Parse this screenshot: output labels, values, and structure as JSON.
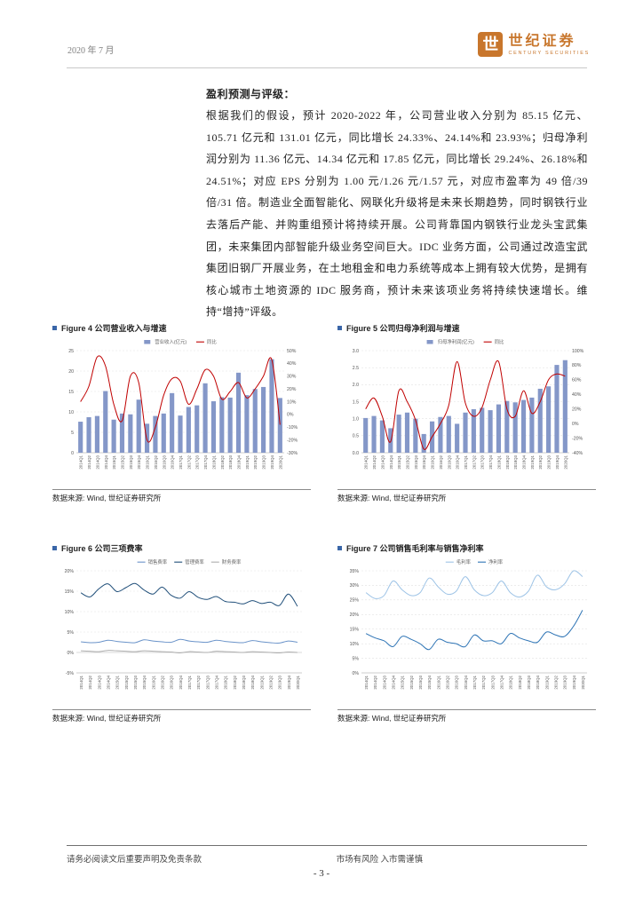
{
  "page": {
    "header": {
      "date": "2020 年 7 月",
      "brand": {
        "name": "世纪证券",
        "subtitle": "CENTURY SECURITIES",
        "icon_glyph": "世",
        "color": "#C8762C"
      }
    },
    "section": {
      "heading": "盈利预测与评级：",
      "paragraph": "根据我们的假设，预计 2020-2022 年，公司营业收入分别为 85.15 亿元、105.71 亿元和 131.01 亿元，同比增长 24.33%、24.14%和 23.93%；归母净利润分别为 11.36 亿元、14.34 亿元和 17.85 亿元，同比增长 29.24%、26.18%和 24.51%；对应 EPS 分别为 1.00 元/1.26 元/1.57 元，对应市盈率为 49 倍/39 倍/31 倍。制造业全面智能化、网联化升级将是未来长期趋势，同时钢铁行业去落后产能、并购重组预计将持续开展。公司背靠国内钢铁行业龙头宝武集团，未来集团内部智能升级业务空间巨大。IDC 业务方面，公司通过改造宝武集团旧钢厂开展业务，在土地租金和电力系统等成本上拥有较大优势，是拥有核心城市土地资源的 IDC 服务商，预计未来该项业务将持续快速增长。维持“增持”评级。"
    },
    "footer": {
      "left": "请务必阅读文后重要声明及免责条款",
      "right": "市场有风险 入市需谨慎",
      "page_number": "- 3 -"
    }
  },
  "chart_data": [
    {
      "figure_label": "Figure 4 公司营业收入与增速",
      "type": "bar",
      "source": "数据来源: Wind, 世纪证券研究所",
      "categories": [
        "2014Q1",
        "2014Q2",
        "2014Q3",
        "2014Q4",
        "2015Q1",
        "2015Q2",
        "2015Q3",
        "2015Q4",
        "2016Q1",
        "2016Q2",
        "2016Q3",
        "2016Q4",
        "2017Q1",
        "2017Q2",
        "2017Q3",
        "2017Q4",
        "2018Q1",
        "2018Q2",
        "2018Q3",
        "2018Q4",
        "2019Q1",
        "2019Q2",
        "2019Q3",
        "2019Q4",
        "2020Q1"
      ],
      "series": [
        {
          "name": "营业收入(亿元)",
          "type": "bar",
          "axis": "left",
          "color": "#8497C8",
          "values": [
            7.6,
            8.7,
            9.0,
            15.1,
            8.1,
            9.6,
            9.4,
            13.0,
            7.1,
            9.0,
            9.6,
            14.6,
            9.1,
            11.2,
            11.6,
            17.0,
            12.6,
            13.6,
            13.5,
            19.6,
            14.1,
            15.6,
            16.1,
            22.9,
            13.4
          ]
        },
        {
          "name": "同比",
          "type": "line",
          "axis": "right",
          "color": "#C00000",
          "values": [
            10,
            22,
            45,
            38,
            8,
            -5,
            30,
            25,
            -20,
            -10,
            15,
            28,
            26,
            8,
            20,
            35,
            30,
            12,
            18,
            25,
            13,
            20,
            30,
            43,
            -8
          ]
        }
      ],
      "left_axis": {
        "min": 0,
        "max": 25,
        "step": 5,
        "format": "number"
      },
      "right_axis": {
        "min": -30,
        "max": 50,
        "step": 10,
        "format": "percent"
      }
    },
    {
      "figure_label": "Figure 5 公司归母净利润与增速",
      "type": "bar",
      "source": "数据来源: Wind, 世纪证券研究所",
      "categories": [
        "2014Q1",
        "2014Q2",
        "2014Q3",
        "2014Q4",
        "2015Q1",
        "2015Q2",
        "2015Q3",
        "2015Q4",
        "2016Q1",
        "2016Q2",
        "2016Q3",
        "2016Q4",
        "2017Q1",
        "2017Q2",
        "2017Q3",
        "2017Q4",
        "2018Q1",
        "2018Q2",
        "2018Q3",
        "2018Q4",
        "2019Q1",
        "2019Q2",
        "2019Q3",
        "2019Q4",
        "2020Q1"
      ],
      "series": [
        {
          "name": "归母净利润(亿元)",
          "type": "bar",
          "axis": "left",
          "color": "#8497C8",
          "values": [
            1.02,
            1.08,
            0.95,
            0.72,
            1.12,
            1.18,
            1.0,
            0.55,
            0.92,
            1.05,
            1.08,
            0.85,
            1.18,
            1.28,
            1.32,
            1.25,
            1.42,
            1.52,
            1.48,
            1.55,
            1.62,
            1.88,
            1.95,
            2.58,
            2.72
          ]
        },
        {
          "name": "同比",
          "type": "line",
          "axis": "right",
          "color": "#C00000",
          "values": [
            20,
            35,
            10,
            -25,
            45,
            30,
            5,
            -35,
            -18,
            0,
            25,
            85,
            28,
            10,
            22,
            60,
            85,
            20,
            10,
            45,
            14,
            30,
            60,
            68,
            65
          ]
        }
      ],
      "left_axis": {
        "min": 0,
        "max": 3,
        "step": 0.5,
        "format": "decimal1"
      },
      "right_axis": {
        "min": -40,
        "max": 100,
        "step": 20,
        "format": "percent"
      }
    },
    {
      "figure_label": "Figure 6 公司三项费率",
      "type": "line",
      "source": "数据来源: Wind, 世纪证券研究所",
      "categories": [
        "2014Q1",
        "2014Q2",
        "2014Q3",
        "2014Q4",
        "2015Q1",
        "2015Q2",
        "2015Q3",
        "2015Q4",
        "2016Q1",
        "2016Q2",
        "2016Q3",
        "2016Q4",
        "2017Q1",
        "2017Q2",
        "2017Q3",
        "2017Q4",
        "2018Q1",
        "2018Q2",
        "2018Q3",
        "2018Q4",
        "2019Q1",
        "2019Q2",
        "2019Q3",
        "2019Q4",
        "2020Q1"
      ],
      "series": [
        {
          "name": "销售费率",
          "type": "line",
          "axis": "left",
          "color": "#6A93C9",
          "values": [
            2.6,
            2.4,
            2.5,
            3.0,
            2.7,
            2.5,
            2.4,
            3.1,
            2.8,
            2.6,
            2.5,
            3.2,
            2.8,
            2.6,
            2.5,
            3.0,
            2.7,
            2.5,
            2.4,
            2.9,
            2.6,
            2.4,
            2.3,
            2.8,
            2.5
          ]
        },
        {
          "name": "管理费率",
          "type": "line",
          "axis": "left",
          "color": "#1F4E79",
          "values": [
            14.6,
            13.6,
            15.6,
            16.8,
            14.9,
            15.9,
            16.9,
            15.3,
            14.3,
            16.0,
            14.0,
            13.3,
            14.9,
            13.5,
            13.0,
            13.7,
            12.5,
            12.3,
            11.9,
            12.7,
            12.0,
            12.3,
            11.5,
            14.3,
            11.3
          ]
        },
        {
          "name": "财务费率",
          "type": "line",
          "axis": "left",
          "color": "#ADADAD",
          "values": [
            0.4,
            0.3,
            0.2,
            0.5,
            0.4,
            0.3,
            0.2,
            0.4,
            0.3,
            0.2,
            0.1,
            -0.1,
            0.2,
            0.1,
            0.0,
            0.3,
            0.2,
            0.1,
            0.0,
            0.2,
            0.1,
            0.0,
            -0.1,
            0.1,
            0.0
          ]
        }
      ],
      "left_axis": {
        "min": -5,
        "max": 20,
        "step": 5,
        "format": "percent"
      }
    },
    {
      "figure_label": "Figure 7 公司销售毛利率与销售净利率",
      "type": "line",
      "source": "数据来源: Wind, 世纪证券研究所",
      "categories": [
        "2014Q1",
        "2014Q2",
        "2014Q3",
        "2014Q4",
        "2015Q1",
        "2015Q2",
        "2015Q3",
        "2015Q4",
        "2016Q1",
        "2016Q2",
        "2016Q3",
        "2016Q4",
        "2017Q1",
        "2017Q2",
        "2017Q3",
        "2017Q4",
        "2018Q1",
        "2018Q2",
        "2018Q3",
        "2018Q4",
        "2019Q1",
        "2019Q2",
        "2019Q3",
        "2019Q4",
        "2020Q1"
      ],
      "series": [
        {
          "name": "毛利率",
          "type": "line",
          "axis": "left",
          "color": "#9DC3E6",
          "values": [
            27.5,
            25.5,
            26.5,
            31.5,
            28.5,
            26.5,
            27.5,
            32.5,
            29.5,
            27.0,
            28.0,
            33.0,
            28.5,
            26.5,
            27.5,
            31.5,
            27.5,
            26.0,
            28.0,
            33.5,
            29.5,
            28.5,
            30.5,
            35.0,
            33.0
          ]
        },
        {
          "name": "净利率",
          "type": "line",
          "axis": "left",
          "color": "#2E74B5",
          "values": [
            13.5,
            12.0,
            11.0,
            9.0,
            12.5,
            11.5,
            10.0,
            8.0,
            11.5,
            10.5,
            10.0,
            9.0,
            13.0,
            11.0,
            11.0,
            10.0,
            13.5,
            12.0,
            11.0,
            10.5,
            14.0,
            13.0,
            12.5,
            16.0,
            21.5
          ]
        }
      ],
      "left_axis": {
        "min": 0,
        "max": 35,
        "step": 5,
        "format": "percent"
      }
    }
  ]
}
